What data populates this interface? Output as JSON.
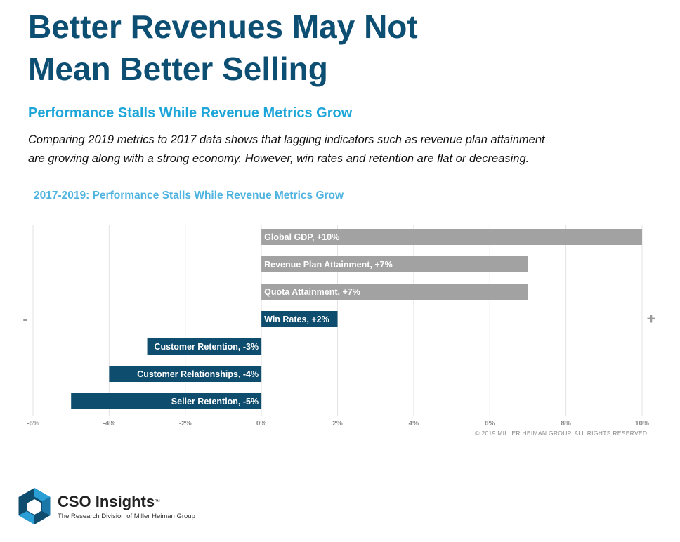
{
  "header": {
    "title_line1": "Better Revenues May Not",
    "title_line2": "Mean Better Selling",
    "subtitle": "Performance Stalls While Revenue Metrics Grow",
    "description_line1": "Comparing 2019 metrics to 2017 data shows that lagging indicators such as revenue plan attainment",
    "description_line2": "are growing along with a strong economy.  However, win rates and retention are flat or decreasing."
  },
  "colors": {
    "positive_bar": "#a2a2a2",
    "highlight_bar": "#0e4d6e",
    "negative_bar": "#0e4d6e",
    "grid": "#e3e3e3",
    "tick_text": "#8a8a8a"
  },
  "chart_data": {
    "type": "bar",
    "orientation": "horizontal",
    "title": "2017-2019: Performance Stalls While Revenue Metrics Grow",
    "categories": [
      "Global GDP, +10%",
      "Revenue Plan Attainment, +7%",
      "Quota Attainment, +7%",
      "Win Rates, +2%",
      "Customer Retention, -3%",
      "Customer Relationships, -4%",
      "Seller Retention, -5%"
    ],
    "values": [
      10,
      7,
      7,
      2,
      -3,
      -4,
      -5
    ],
    "bar_color_keys": [
      "positive_bar",
      "positive_bar",
      "positive_bar",
      "highlight_bar",
      "negative_bar",
      "negative_bar",
      "negative_bar"
    ],
    "xlim": [
      -6,
      10
    ],
    "xticks": [
      "-6%",
      "-4%",
      "-2%",
      "0%",
      "2%",
      "4%",
      "6%",
      "8%",
      "10%"
    ],
    "xtick_values": [
      -6,
      -4,
      -2,
      0,
      2,
      4,
      6,
      8,
      10
    ],
    "negative_marker": "-",
    "positive_marker": "+",
    "grid": true
  },
  "footer": {
    "copyright": "© 2019 MILLER HEIMAN GROUP. ALL RIGHTS RESERVED.",
    "brand_name": "CSO Insights",
    "brand_tm": "™",
    "brand_tagline": "The Research Division of Miller Heiman Group"
  }
}
